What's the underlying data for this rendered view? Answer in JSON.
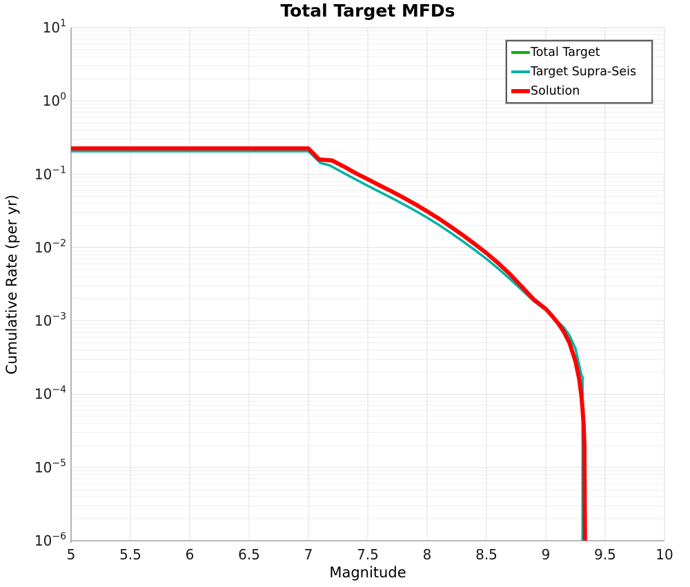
{
  "chart_data": {
    "type": "line",
    "title": "Total Target MFDs",
    "xlabel": "Magnitude",
    "ylabel": "Cumulative Rate (per yr)",
    "xlim": [
      5,
      10
    ],
    "y_log": true,
    "ylim_exponents": [
      -6,
      1
    ],
    "xticks": {
      "values": [
        5,
        5.5,
        6,
        6.5,
        7,
        7.5,
        8,
        8.5,
        9,
        9.5,
        10
      ],
      "labels": [
        "5",
        "5.5",
        "6",
        "6.5",
        "7",
        "7.5",
        "8",
        "8.5",
        "9",
        "9.5",
        "10"
      ]
    },
    "ytick_exponents": [
      1,
      0,
      -1,
      -2,
      -3,
      -4,
      -5,
      -6
    ],
    "grid": {
      "shown": true,
      "major_color": "#e1e1e1",
      "minor_color": "#eeeeee"
    },
    "spine_dark_color": "#a0a0a0",
    "spine_light_color": "#d9d9d9",
    "legend_position": "top-right",
    "series": [
      {
        "name": "Total Target",
        "color": "#00b400",
        "width": 3.5,
        "points": [
          [
            5.0,
            0.225
          ],
          [
            7.0,
            0.225
          ],
          [
            7.09,
            0.159
          ],
          [
            7.2,
            0.154
          ],
          [
            7.3,
            0.127
          ],
          [
            7.4,
            0.103
          ],
          [
            7.5,
            0.0855
          ],
          [
            7.6,
            0.0705
          ],
          [
            7.7,
            0.0585
          ],
          [
            7.8,
            0.048
          ],
          [
            7.9,
            0.039
          ],
          [
            8.0,
            0.0312
          ],
          [
            8.1,
            0.0248
          ],
          [
            8.2,
            0.0192
          ],
          [
            8.3,
            0.0148
          ],
          [
            8.4,
            0.0112
          ],
          [
            8.5,
            0.0084
          ],
          [
            8.6,
            0.0061
          ],
          [
            8.7,
            0.0043
          ],
          [
            8.8,
            0.0029
          ],
          [
            8.9,
            0.00195
          ],
          [
            9.0,
            0.00145
          ],
          [
            9.05,
            0.00118
          ],
          [
            9.1,
            0.00094
          ],
          [
            9.15,
            0.00072
          ],
          [
            9.2,
            0.0005
          ],
          [
            9.25,
            0.00028
          ],
          [
            9.28,
            0.000165
          ],
          [
            9.3,
            9.5e-05
          ],
          [
            9.31,
            6.2e-05
          ],
          [
            9.32,
            3.6e-05
          ],
          [
            9.325,
            2e-05
          ],
          [
            9.33,
            1e-06
          ]
        ]
      },
      {
        "name": "Target Supra-Seis",
        "color": "#00b2a2",
        "width": 3.5,
        "points": [
          [
            5.0,
            0.206
          ],
          [
            7.0,
            0.206
          ],
          [
            7.1,
            0.143
          ],
          [
            7.18,
            0.132
          ],
          [
            7.3,
            0.103
          ],
          [
            7.4,
            0.0845
          ],
          [
            7.5,
            0.0695
          ],
          [
            7.6,
            0.0575
          ],
          [
            7.7,
            0.0475
          ],
          [
            7.8,
            0.039
          ],
          [
            7.9,
            0.0318
          ],
          [
            8.0,
            0.0256
          ],
          [
            8.1,
            0.0203
          ],
          [
            8.2,
            0.0158
          ],
          [
            8.3,
            0.0122
          ],
          [
            8.4,
            0.0093
          ],
          [
            8.5,
            0.007
          ],
          [
            8.6,
            0.00515
          ],
          [
            8.7,
            0.0037
          ],
          [
            8.8,
            0.00262
          ],
          [
            8.9,
            0.00185
          ],
          [
            9.0,
            0.0014
          ],
          [
            9.05,
            0.00117
          ],
          [
            9.1,
            0.00098
          ],
          [
            9.15,
            0.00082
          ],
          [
            9.2,
            0.00063
          ],
          [
            9.25,
            0.00042
          ],
          [
            9.3,
            0.000185
          ],
          [
            9.31,
            0.00017
          ],
          [
            9.31,
            1e-06
          ]
        ]
      },
      {
        "name": "Solution",
        "color": "#fe0000",
        "width": 6,
        "points": [
          [
            5.0,
            0.225
          ],
          [
            7.0,
            0.225
          ],
          [
            7.09,
            0.159
          ],
          [
            7.2,
            0.154
          ],
          [
            7.3,
            0.127
          ],
          [
            7.4,
            0.103
          ],
          [
            7.5,
            0.0855
          ],
          [
            7.6,
            0.0705
          ],
          [
            7.7,
            0.0585
          ],
          [
            7.8,
            0.048
          ],
          [
            7.9,
            0.039
          ],
          [
            8.0,
            0.0312
          ],
          [
            8.1,
            0.0248
          ],
          [
            8.2,
            0.0192
          ],
          [
            8.3,
            0.0148
          ],
          [
            8.4,
            0.0112
          ],
          [
            8.5,
            0.0084
          ],
          [
            8.6,
            0.0061
          ],
          [
            8.7,
            0.0043
          ],
          [
            8.8,
            0.0029
          ],
          [
            8.9,
            0.00195
          ],
          [
            9.0,
            0.00145
          ],
          [
            9.05,
            0.00118
          ],
          [
            9.1,
            0.00094
          ],
          [
            9.15,
            0.00072
          ],
          [
            9.2,
            0.0005
          ],
          [
            9.25,
            0.00028
          ],
          [
            9.28,
            0.000165
          ],
          [
            9.3,
            9.5e-05
          ],
          [
            9.31,
            6.2e-05
          ],
          [
            9.32,
            3.6e-05
          ],
          [
            9.325,
            2e-05
          ],
          [
            9.33,
            1e-06
          ]
        ]
      }
    ]
  }
}
